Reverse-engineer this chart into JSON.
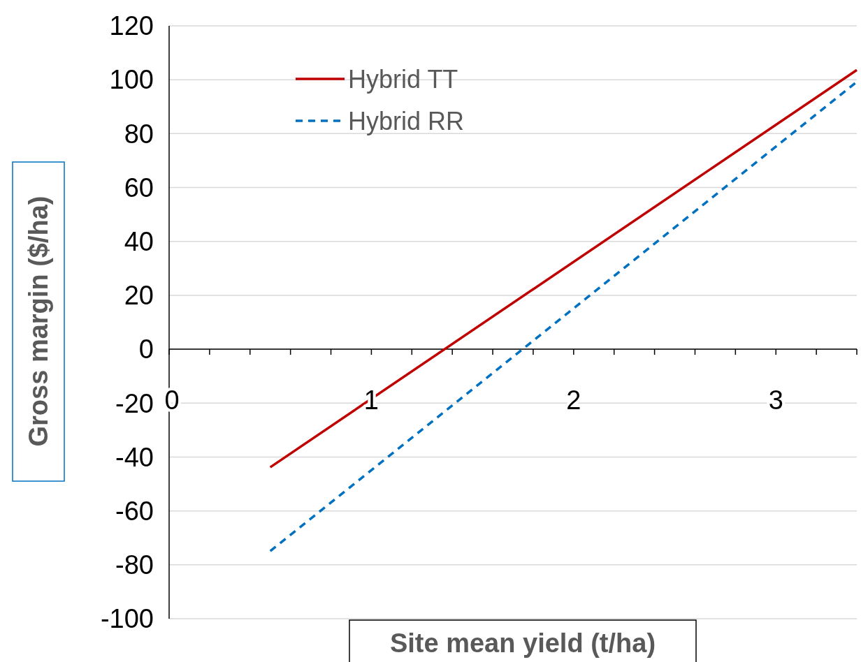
{
  "chart_data": {
    "type": "line",
    "xlabel": "Site mean yield (t/ha)",
    "ylabel": "Gross margin ($/ha)",
    "x": [
      0.5,
      3.4
    ],
    "series": [
      {
        "name": "Hybrid TT",
        "color": "#c00000",
        "values": [
          -43.8,
          103.6
        ],
        "line_style": "solid"
      },
      {
        "name": "Hybrid RR",
        "color": "#0070c0",
        "values": [
          -74.9,
          99.2
        ],
        "line_style": "dashed"
      }
    ],
    "xlim": [
      0,
      3.4
    ],
    "xticks": [
      0,
      {
        "value": 0.2,
        "label": null
      },
      {
        "value": 0.4,
        "label": null
      },
      {
        "value": 0.6,
        "label": null
      },
      {
        "value": 0.8,
        "label": null
      },
      1,
      {
        "value": 1.2,
        "label": null
      },
      {
        "value": 1.4,
        "label": null
      },
      {
        "value": 1.6,
        "label": null
      },
      {
        "value": 1.8,
        "label": null
      },
      2,
      {
        "value": 2.2,
        "label": null
      },
      {
        "value": 2.4,
        "label": null
      },
      {
        "value": 2.6,
        "label": null
      },
      {
        "value": 2.8,
        "label": null
      },
      3,
      {
        "value": 3.2,
        "label": null
      },
      {
        "value": 3.4,
        "label": null
      }
    ],
    "ylim": [
      -100,
      120
    ],
    "yticks": [
      -100,
      -80,
      -60,
      -40,
      -20,
      0,
      20,
      40,
      60,
      80,
      100,
      120
    ],
    "grid": "y",
    "legend": "top left"
  }
}
